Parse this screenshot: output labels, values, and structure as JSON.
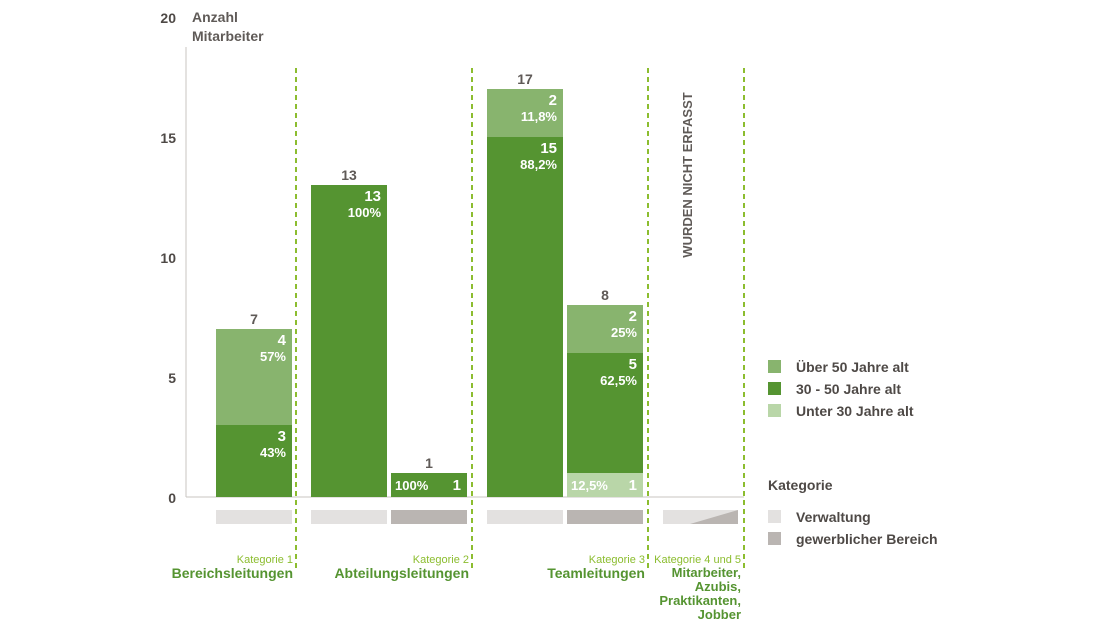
{
  "chart_data": {
    "type": "bar",
    "stacked": true,
    "ylabel": "Anzahl Mitarbeiter",
    "ylim": [
      0,
      20
    ],
    "yticks": [
      0,
      5,
      10,
      15,
      20
    ],
    "grid": false,
    "legend_position": "right",
    "series": [
      {
        "name": "Über 50 Jahre alt",
        "color": "#88b46e"
      },
      {
        "name": "30 - 50 Jahre alt",
        "color": "#559431"
      },
      {
        "name": "Unter 30 Jahre alt",
        "color": "#b9d6a8"
      }
    ],
    "category_legend": {
      "title": "Kategorie",
      "items": [
        {
          "name": "Verwaltung",
          "color": "#e3e1e0"
        },
        {
          "name": "gewerblicher Bereich",
          "color": "#bab5b2"
        }
      ]
    },
    "groups": [
      {
        "label_small": "Kategorie 1",
        "label_big": "Bereichsleitungen"
      },
      {
        "label_small": "Kategorie 2",
        "label_big": "Abteilungsleitungen"
      },
      {
        "label_small": "Kategorie 3",
        "label_big": "Teamleitungen"
      },
      {
        "label_small": "Kategorie 4 und 5",
        "label_big": "Mitarbeiter, Azubis, Praktikanten, Jobber"
      }
    ],
    "bars": [
      {
        "group": 0,
        "area": "Verwaltung",
        "total": 7,
        "segments": [
          {
            "series": "30 - 50 Jahre alt",
            "value": 3,
            "pct": "43%"
          },
          {
            "series": "Über 50 Jahre alt",
            "value": 4,
            "pct": "57%"
          }
        ]
      },
      {
        "group": 1,
        "area": "Verwaltung",
        "total": 13,
        "segments": [
          {
            "series": "30 - 50 Jahre alt",
            "value": 13,
            "pct": "100%"
          }
        ]
      },
      {
        "group": 1,
        "area": "gewerblicher Bereich",
        "total": 1,
        "segments": [
          {
            "series": "30 - 50 Jahre alt",
            "value": 1,
            "pct": "100%"
          }
        ]
      },
      {
        "group": 2,
        "area": "Verwaltung",
        "total": 17,
        "segments": [
          {
            "series": "30 - 50 Jahre alt",
            "value": 15,
            "pct": "88,2%"
          },
          {
            "series": "Über 50 Jahre alt",
            "value": 2,
            "pct": "11,8%"
          }
        ]
      },
      {
        "group": 2,
        "area": "gewerblicher Bereich",
        "total": 8,
        "segments": [
          {
            "series": "Unter 30 Jahre alt",
            "value": 1,
            "pct": "12,5%"
          },
          {
            "series": "30 - 50 Jahre alt",
            "value": 5,
            "pct": "62,5%"
          },
          {
            "series": "Über 50 Jahre alt",
            "value": 2,
            "pct": "25%"
          }
        ]
      }
    ],
    "not_recorded": {
      "group": 3,
      "text": "WURDEN NICHT ERFASST"
    }
  }
}
